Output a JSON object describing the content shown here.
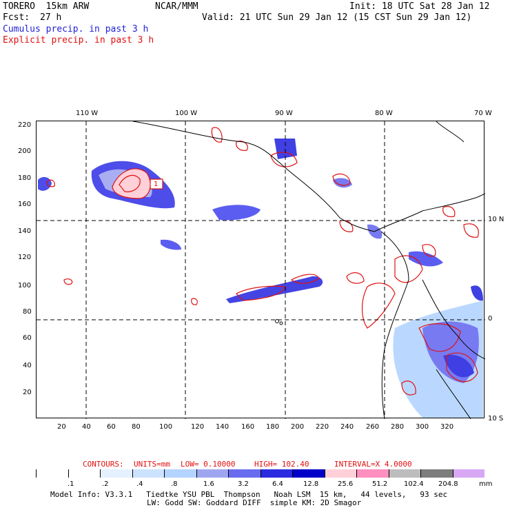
{
  "header": {
    "model": "TORERO  15km ARW",
    "org": "NCAR/MMM",
    "init": "Init: 18 UTC Sat 28 Jan 12",
    "fcst_label": "Fcst:",
    "fcst_value": "27 h",
    "valid": "Valid: 21 UTC Sun 29 Jan 12 (15 CST Sun 29 Jan 12)",
    "cumulus": "Cumulus precip. in past 3 h",
    "explicit": "Explicit precip. in past 3 h"
  },
  "map": {
    "lon_labels": [
      "110 W",
      "100 W",
      "90 W",
      "80 W",
      "70 W"
    ],
    "lat_labels": [
      "10 N",
      "0",
      "10 S"
    ],
    "y_ticks": [
      "220",
      "200",
      "180",
      "160",
      "140",
      "120",
      "100",
      "80",
      "60",
      "40",
      "20"
    ],
    "x_ticks": [
      "20",
      "40",
      "60",
      "80",
      "100",
      "120",
      "140",
      "160",
      "180",
      "200",
      "220",
      "240",
      "260",
      "280",
      "300",
      "320"
    ],
    "contour_box_label": "1",
    "colors": {
      "cumulus": "#1f1fd6",
      "explicit": "#e01010"
    }
  },
  "contours_line": {
    "contours": "CONTOURS:",
    "units": "UNITS=mm",
    "low": "LOW= 0.10000",
    "high": "HIGH= 102.40",
    "interval": "INTERVAL=X 4.0000"
  },
  "legend": {
    "labels": [
      ".1",
      ".2",
      ".4",
      ".8",
      "1.6",
      "3.2",
      "6.4",
      "12.8",
      "25.6",
      "51.2",
      "102.4",
      "204.8"
    ],
    "unit": "mm",
    "colors": [
      "#ffffff",
      "#ffffff",
      "#e6f1ff",
      "#cce3ff",
      "#b3d4ff",
      "#9fa6f0",
      "#6a6cf0",
      "#2b2be0",
      "#0000c8",
      "#ffd0d8",
      "#ff8fbe",
      "#bdbdbd",
      "#7d7d7d",
      "#d8a8f5"
    ]
  },
  "footer": {
    "line1": "Model Info: V3.3.1   Tiedtke YSU PBL  Thompson   Noah LSM  15 km,   44 levels,   93 sec",
    "line2": "LW: Godd SW: Goddard DIFF  simple KM: 2D Smagor"
  }
}
